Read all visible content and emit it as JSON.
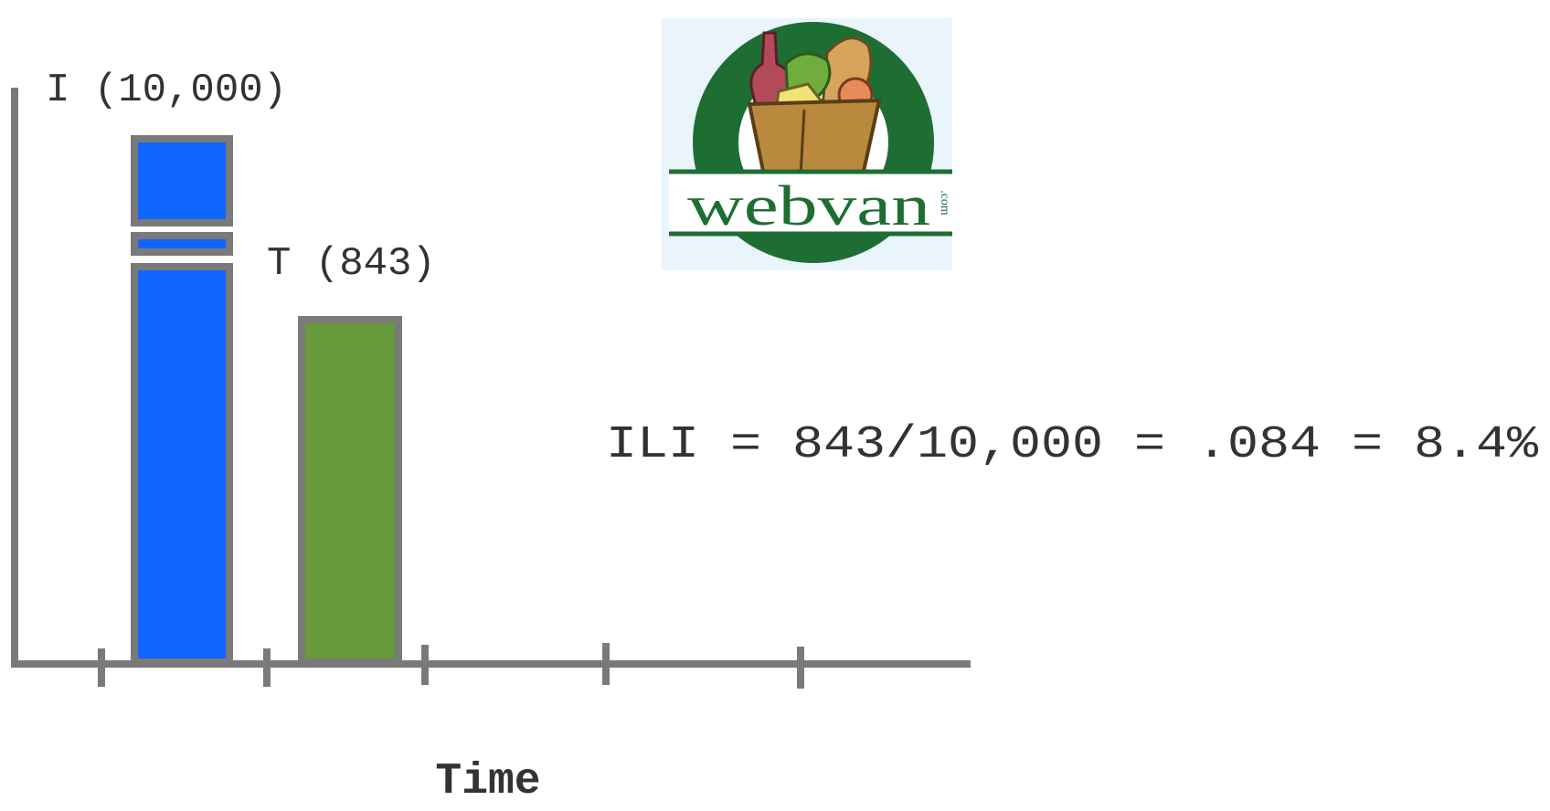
{
  "chart_data": {
    "type": "bar",
    "categories": [
      "I",
      "T"
    ],
    "series": [
      {
        "values": [
          10000,
          843
        ]
      }
    ],
    "data_labels": [
      "I (10,000)",
      "T (843)"
    ],
    "bar_colors": [
      "#1166ff",
      "#679a3a"
    ],
    "axis_color": "#7a7a7a",
    "axis_break": true,
    "xlabel": "Time",
    "ylabel": "",
    "grid": false,
    "legend": "none",
    "annotation": "ILI = 843/10,000 = .084 = 8.4%"
  },
  "logo": {
    "text": "webvan",
    "suffix": ".com",
    "bg_color": "#eaf4fb",
    "ring_color": "#1e6e33"
  }
}
